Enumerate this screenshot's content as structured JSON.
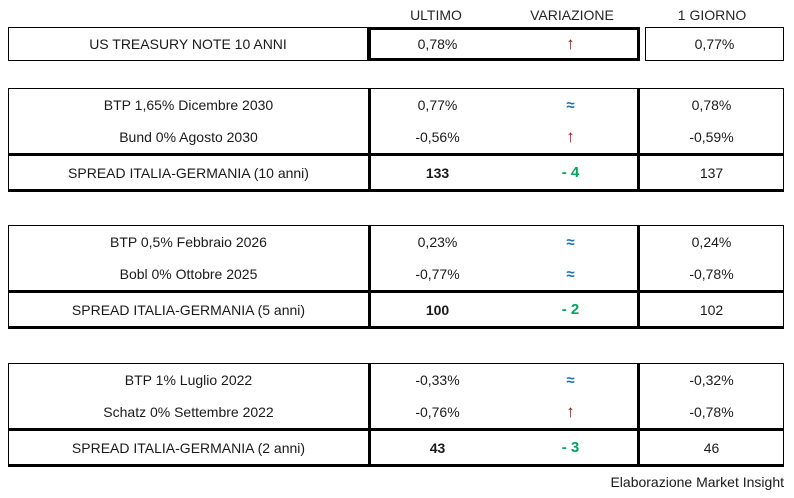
{
  "header": {
    "ultimo": "ULTIMO",
    "variazione": "VARIAZIONE",
    "giorno": "1 GIORNO"
  },
  "us_treasury": {
    "label": "US TREASURY NOTE 10 ANNI",
    "ultimo": "0,78%",
    "variation": {
      "symbol": "↑",
      "type": "var-up",
      "meaning": "up-arrow"
    },
    "giorno": "0,77%"
  },
  "blocks": [
    {
      "rows": [
        {
          "label": "BTP 1,65% Dicembre 2030",
          "ultimo": "0,77%",
          "variation": {
            "symbol": "≈",
            "type": "var-flat",
            "meaning": "approximately-equal"
          },
          "giorno": "0,78%"
        },
        {
          "label": "Bund 0% Agosto 2030",
          "ultimo": "-0,56%",
          "variation": {
            "symbol": "↑",
            "type": "var-up",
            "meaning": "up-arrow"
          },
          "giorno": "-0,59%"
        }
      ],
      "spread": {
        "label": "SPREAD ITALIA-GERMANIA (10 anni)",
        "ultimo": "133",
        "variation": {
          "symbol": "- 4",
          "type": "var-green",
          "meaning": "change-down-4"
        },
        "giorno": "137"
      }
    },
    {
      "rows": [
        {
          "label": "BTP 0,5% Febbraio 2026",
          "ultimo": "0,23%",
          "variation": {
            "symbol": "≈",
            "type": "var-flat",
            "meaning": "approximately-equal"
          },
          "giorno": "0,24%"
        },
        {
          "label": "Bobl 0% Ottobre 2025",
          "ultimo": "-0,77%",
          "variation": {
            "symbol": "≈",
            "type": "var-flat",
            "meaning": "approximately-equal"
          },
          "giorno": "-0,78%"
        }
      ],
      "spread": {
        "label": "SPREAD ITALIA-GERMANIA (5 anni)",
        "ultimo": "100",
        "variation": {
          "symbol": "- 2",
          "type": "var-green",
          "meaning": "change-down-2"
        },
        "giorno": "102"
      }
    },
    {
      "rows": [
        {
          "label": "BTP 1% Luglio 2022",
          "ultimo": "-0,33%",
          "variation": {
            "symbol": "≈",
            "type": "var-flat",
            "meaning": "approximately-equal"
          },
          "giorno": "-0,32%"
        },
        {
          "label": "Schatz 0% Settembre 2022",
          "ultimo": "-0,76%",
          "variation": {
            "symbol": "↑",
            "type": "var-up",
            "meaning": "up-arrow"
          },
          "giorno": "-0,78%"
        }
      ],
      "spread": {
        "label": "SPREAD ITALIA-GERMANIA (2 anni)",
        "ultimo": "43",
        "variation": {
          "symbol": "- 3",
          "type": "var-green",
          "meaning": "change-down-3"
        },
        "giorno": "46"
      }
    }
  ],
  "footer": "Elaborazione Market Insight",
  "colors": {
    "up_arrow_red": "#c00000",
    "flat_blue": "#1f72a8",
    "improvement_green": "#00a45a",
    "border_black": "#000000",
    "text": "#1a1a1a",
    "background": "#ffffff"
  }
}
